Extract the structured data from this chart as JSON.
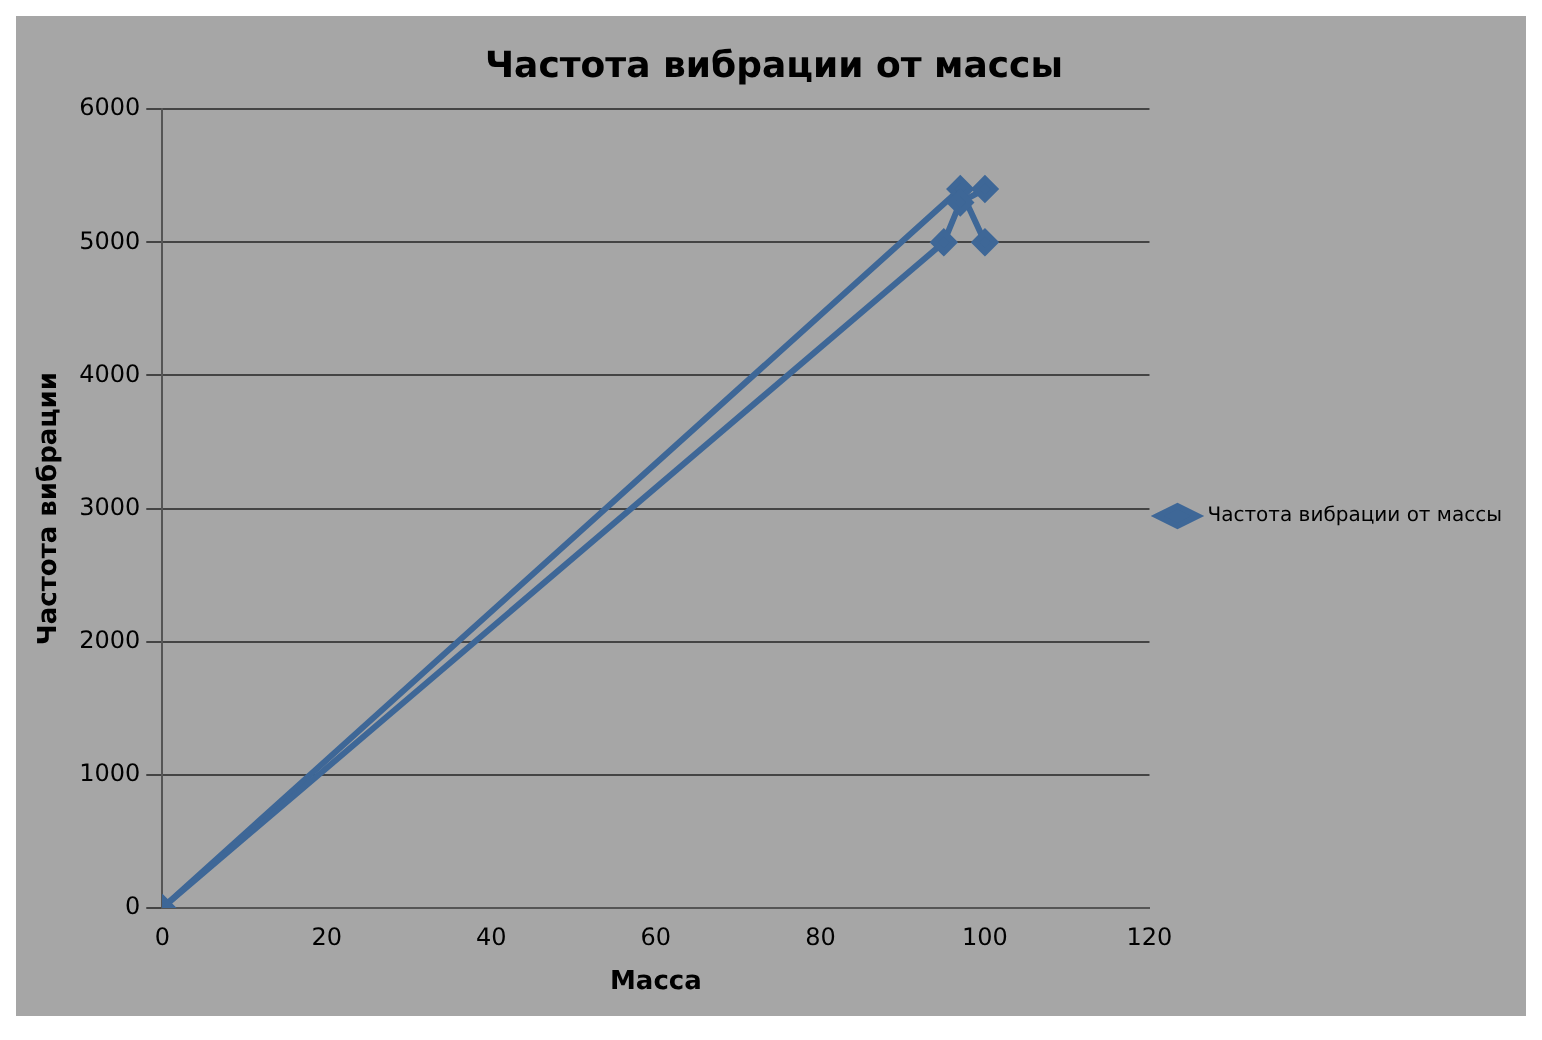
{
  "chart_data": {
    "type": "line",
    "title": "Частота вибрации от массы",
    "xlabel": "Масса",
    "ylabel": "Частота вибрации",
    "xlim": [
      0,
      120
    ],
    "xticks": [
      0,
      20,
      40,
      60,
      80,
      100,
      120
    ],
    "ylim": [
      0,
      6000
    ],
    "yticks": [
      0,
      1000,
      2000,
      3000,
      4000,
      5000,
      6000
    ],
    "grid": "y",
    "legend": "right",
    "marker": "diamond",
    "line_style": "solid",
    "series": [
      {
        "name": "Частота вибрации от массы",
        "color": "#3e6797",
        "x": [
          0,
          95,
          97,
          100
        ],
        "values": [
          0,
          5000,
          5300,
          5400
        ]
      },
      {
        "color": "#3e6797",
        "x": [
          0,
          97,
          100
        ],
        "values": [
          0,
          5400,
          5000
        ]
      }
    ]
  }
}
